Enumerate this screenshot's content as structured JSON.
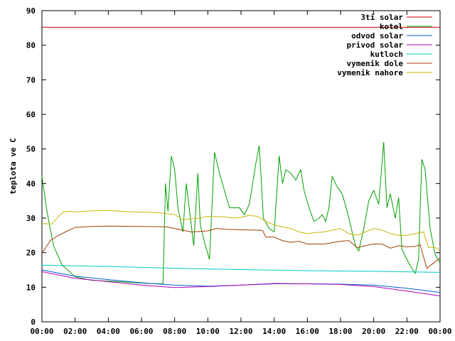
{
  "chart_data": {
    "type": "line",
    "title": "",
    "xlabel": "",
    "ylabel": "teplota ve C",
    "ylim": [
      0,
      90
    ],
    "xlim": [
      "00:00",
      "00:00"
    ],
    "x_ticks": [
      "00:00",
      "02:00",
      "04:00",
      "06:00",
      "08:00",
      "10:00",
      "12:00",
      "14:00",
      "16:00",
      "18:00",
      "20:00",
      "22:00",
      "00:00"
    ],
    "y_ticks": [
      "0",
      "10",
      "20",
      "30",
      "40",
      "50",
      "60",
      "70",
      "80",
      "90"
    ],
    "grid": false,
    "legend_position": "top-right",
    "series": [
      {
        "name": "3ti solar",
        "color": "#cc0000",
        "points": [
          [
            0,
            85.2
          ],
          [
            24,
            85.2
          ]
        ]
      },
      {
        "name": "kotel",
        "color": "#00a000",
        "points": [
          [
            0,
            42
          ],
          [
            0.3,
            32
          ],
          [
            0.7,
            22
          ],
          [
            1.2,
            16.5
          ],
          [
            2,
            13
          ],
          [
            3,
            12
          ],
          [
            5,
            11.5
          ],
          [
            6,
            11.2
          ],
          [
            7.2,
            11
          ],
          [
            7.3,
            11
          ],
          [
            7.45,
            40
          ],
          [
            7.6,
            32
          ],
          [
            7.8,
            48
          ],
          [
            8,
            44
          ],
          [
            8.2,
            33
          ],
          [
            8.5,
            26
          ],
          [
            8.7,
            40
          ],
          [
            8.9,
            32
          ],
          [
            9.15,
            22
          ],
          [
            9.4,
            43
          ],
          [
            9.55,
            28
          ],
          [
            9.8,
            23
          ],
          [
            10.1,
            18
          ],
          [
            10.4,
            49
          ],
          [
            10.7,
            43
          ],
          [
            11,
            38
          ],
          [
            11.3,
            33
          ],
          [
            11.6,
            33
          ],
          [
            11.9,
            33
          ],
          [
            12.2,
            31
          ],
          [
            12.5,
            34
          ],
          [
            12.9,
            46
          ],
          [
            13.1,
            51
          ],
          [
            13.35,
            30
          ],
          [
            13.7,
            27
          ],
          [
            14,
            26
          ],
          [
            14.3,
            48
          ],
          [
            14.5,
            40
          ],
          [
            14.7,
            44
          ],
          [
            15,
            43
          ],
          [
            15.3,
            41
          ],
          [
            15.6,
            44
          ],
          [
            15.8,
            38
          ],
          [
            16.1,
            33
          ],
          [
            16.4,
            29
          ],
          [
            16.7,
            30
          ],
          [
            16.9,
            31
          ],
          [
            17.1,
            29
          ],
          [
            17.3,
            33
          ],
          [
            17.5,
            42
          ],
          [
            17.8,
            39
          ],
          [
            18.1,
            37
          ],
          [
            18.4,
            32
          ],
          [
            18.7,
            26
          ],
          [
            18.9,
            22
          ],
          [
            19.1,
            20.5
          ],
          [
            19.4,
            27
          ],
          [
            19.7,
            35
          ],
          [
            20,
            38
          ],
          [
            20.3,
            34
          ],
          [
            20.6,
            52
          ],
          [
            20.8,
            33
          ],
          [
            21,
            37
          ],
          [
            21.3,
            30
          ],
          [
            21.5,
            36
          ],
          [
            21.7,
            21
          ],
          [
            22,
            18
          ],
          [
            22.3,
            15.5
          ],
          [
            22.5,
            14
          ],
          [
            22.7,
            18
          ],
          [
            22.9,
            47
          ],
          [
            23.1,
            44
          ],
          [
            23.4,
            27
          ],
          [
            23.7,
            19.5
          ],
          [
            24,
            17
          ]
        ]
      },
      {
        "name": "odvod solar",
        "color": "#0060d0",
        "points": [
          [
            0,
            15
          ],
          [
            2,
            13.2
          ],
          [
            4,
            12.2
          ],
          [
            6,
            11.3
          ],
          [
            8,
            10.6
          ],
          [
            10,
            10.3
          ],
          [
            12,
            10.6
          ],
          [
            14,
            11
          ],
          [
            16,
            11
          ],
          [
            18,
            10.9
          ],
          [
            20,
            10.6
          ],
          [
            22,
            9.7
          ],
          [
            24,
            8.5
          ]
        ]
      },
      {
        "name": "privod solar",
        "color": "#b000b0",
        "points": [
          [
            0,
            14.5
          ],
          [
            2,
            12.6
          ],
          [
            4,
            11.6
          ],
          [
            6,
            10.6
          ],
          [
            8,
            9.9
          ],
          [
            10,
            10.2
          ],
          [
            12,
            10.6
          ],
          [
            14,
            11.1
          ],
          [
            16,
            11
          ],
          [
            18,
            10.8
          ],
          [
            20,
            10.2
          ],
          [
            22,
            8.9
          ],
          [
            24,
            7.5
          ]
        ]
      },
      {
        "name": "kutloch",
        "color": "#00c8c8",
        "points": [
          [
            0,
            16.4
          ],
          [
            4,
            16
          ],
          [
            8,
            15.5
          ],
          [
            12,
            15.1
          ],
          [
            16,
            14.8
          ],
          [
            20,
            14.6
          ],
          [
            24,
            14.3
          ]
        ]
      },
      {
        "name": "vymenik dole",
        "color": "#a04000",
        "points": [
          [
            0,
            19.8
          ],
          [
            0.5,
            23.5
          ],
          [
            1,
            25
          ],
          [
            1.5,
            26.2
          ],
          [
            2,
            27.3
          ],
          [
            3,
            27.6
          ],
          [
            4,
            27.7
          ],
          [
            6,
            27.6
          ],
          [
            7.5,
            27.5
          ],
          [
            8,
            27
          ],
          [
            9,
            26
          ],
          [
            10,
            26.3
          ],
          [
            10.5,
            27
          ],
          [
            11,
            26.8
          ],
          [
            12,
            26.6
          ],
          [
            13,
            26.5
          ],
          [
            13.3,
            26.4
          ],
          [
            13.5,
            24.5
          ],
          [
            14,
            24.5
          ],
          [
            14.5,
            23.5
          ],
          [
            15,
            23
          ],
          [
            15.5,
            23.3
          ],
          [
            16,
            22.5
          ],
          [
            17,
            22.5
          ],
          [
            18,
            23.3
          ],
          [
            18.5,
            23.5
          ],
          [
            19,
            21.5
          ],
          [
            19.5,
            22
          ],
          [
            20,
            22.5
          ],
          [
            20.5,
            22.5
          ],
          [
            21,
            21.3
          ],
          [
            21.5,
            22
          ],
          [
            22,
            21.7
          ],
          [
            22.5,
            21.8
          ],
          [
            22.8,
            22.3
          ],
          [
            23.2,
            15.5
          ],
          [
            23.6,
            17
          ],
          [
            24,
            18.5
          ]
        ]
      },
      {
        "name": "vymenik nahore",
        "color": "#c8b400",
        "points": [
          [
            0,
            28.4
          ],
          [
            0.6,
            28.3
          ],
          [
            1,
            30.5
          ],
          [
            1.3,
            31.8
          ],
          [
            1.7,
            32
          ],
          [
            2,
            31.8
          ],
          [
            3,
            32.1
          ],
          [
            4,
            32.2
          ],
          [
            5,
            31.9
          ],
          [
            6,
            31.7
          ],
          [
            7,
            31.6
          ],
          [
            8,
            31
          ],
          [
            8.5,
            29.5
          ],
          [
            9,
            29.8
          ],
          [
            9.5,
            30
          ],
          [
            10,
            30.5
          ],
          [
            11,
            30.4
          ],
          [
            11.5,
            30
          ],
          [
            12,
            30.2
          ],
          [
            12.5,
            30.8
          ],
          [
            13,
            30.5
          ],
          [
            13.5,
            29
          ],
          [
            14,
            28
          ],
          [
            14.5,
            27.5
          ],
          [
            15,
            27
          ],
          [
            15.5,
            26
          ],
          [
            16,
            25.5
          ],
          [
            16.5,
            25.8
          ],
          [
            17,
            26
          ],
          [
            17.5,
            26.5
          ],
          [
            18,
            27
          ],
          [
            18.5,
            25.5
          ],
          [
            19,
            25
          ],
          [
            19.5,
            26
          ],
          [
            20,
            27
          ],
          [
            20.5,
            26.5
          ],
          [
            21,
            25.5
          ],
          [
            21.5,
            25
          ],
          [
            22,
            25
          ],
          [
            22.5,
            25.5
          ],
          [
            23,
            26
          ],
          [
            23.3,
            21.5
          ],
          [
            23.7,
            21.5
          ],
          [
            24,
            20.5
          ]
        ]
      }
    ]
  }
}
